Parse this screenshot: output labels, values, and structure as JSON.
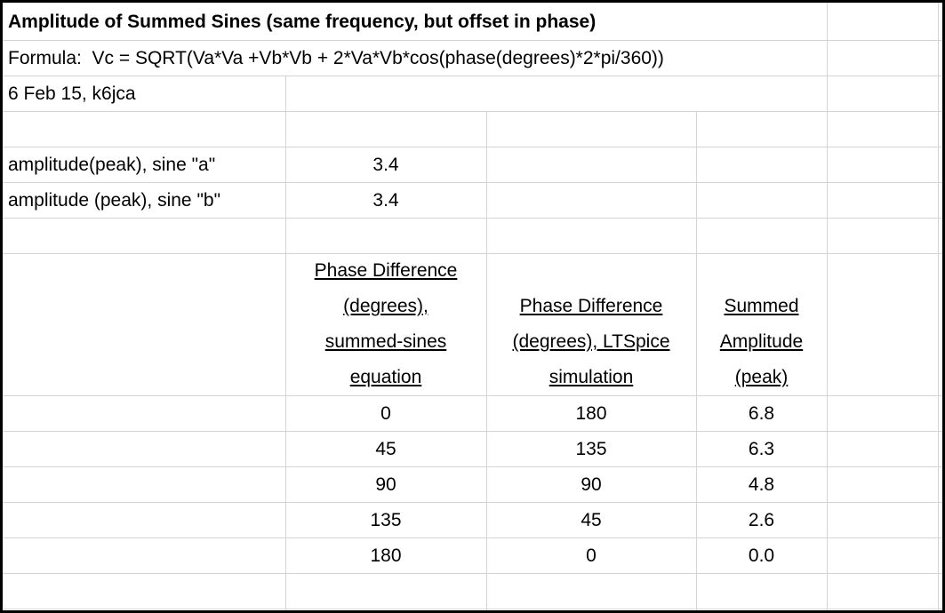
{
  "title": "Amplitude of Summed Sines (same frequency, but offset in phase)",
  "formula": "Formula:  Vc = SQRT(Va*Va +Vb*Vb + 2*Va*Vb*cos(phase(degrees)*2*pi/360))",
  "date": "6 Feb 15, k6jca",
  "inputs": [
    {
      "label": "amplitude(peak), sine \"a\"",
      "value": 3.4
    },
    {
      "label": "amplitude (peak), sine \"b\"",
      "value": 3.4
    }
  ],
  "table": {
    "headers": [
      [
        "Phase Difference",
        "(degrees),",
        "summed-sines",
        "equation"
      ],
      [
        "Phase Difference",
        "(degrees), LTSpice",
        "simulation"
      ],
      [
        "Summed",
        "Amplitude",
        "(peak)"
      ]
    ],
    "rows": [
      [
        0,
        180,
        6.8
      ],
      [
        45,
        135,
        6.3
      ],
      [
        90,
        90,
        4.8
      ],
      [
        135,
        45,
        2.6
      ],
      [
        180,
        0,
        "0.0"
      ]
    ]
  }
}
